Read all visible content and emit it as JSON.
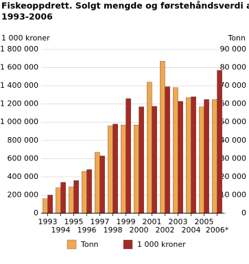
{
  "chart_data": {
    "type": "bar",
    "title": "Fiskeoppdrett. Solgt mengde og førstehåndsverdi av ørret.",
    "subtitle": "1993-2006",
    "y_label": "1 000 kroner",
    "y2_label": "Tonn",
    "categories": [
      "1993",
      "1994",
      "1995",
      "1996",
      "1997",
      "1998",
      "1999",
      "2000",
      "2001",
      "2002",
      "2003",
      "2004",
      "2005",
      "2006*"
    ],
    "series": [
      {
        "name": "Tonn",
        "color": "#f0a74f",
        "axis": "y2",
        "values": [
          8000,
          14000,
          14500,
          23000,
          33500,
          48000,
          48500,
          48500,
          72000,
          83500,
          69000,
          63500,
          58500,
          62500
        ]
      },
      {
        "name": "1 000 kroner",
        "color": "#a52a24",
        "axis": "y",
        "values": [
          200000,
          340000,
          360000,
          480000,
          630000,
          980000,
          1260000,
          1170000,
          1175000,
          1390000,
          1230000,
          1280000,
          1250000,
          1570000
        ]
      }
    ],
    "ylim": [
      0,
      1800000
    ],
    "yticks": [
      0,
      {
        "value": 200000,
        "label": "200 000"
      },
      {
        "value": 400000,
        "label": "400 000"
      },
      {
        "value": 600000,
        "label": "600 000"
      },
      {
        "value": 800000,
        "label": "800 000"
      },
      {
        "value": 1000000,
        "label": "1 000 000"
      },
      {
        "value": 1200000,
        "label": "1 200 000"
      },
      {
        "value": 1400000,
        "label": "1 400 000"
      },
      {
        "value": 1600000,
        "label": "1 600 000"
      },
      {
        "value": 1800000,
        "label": "1 800 000"
      }
    ],
    "y2lim": [
      0,
      90000
    ],
    "y2ticks": [
      0,
      {
        "value": 10000,
        "label": "10 000"
      },
      {
        "value": 20000,
        "label": "20 000"
      },
      {
        "value": 30000,
        "label": "30 000"
      },
      {
        "value": 40000,
        "label": "40 000"
      },
      {
        "value": 50000,
        "label": "50 000"
      },
      {
        "value": 60000,
        "label": "60 000"
      },
      {
        "value": 70000,
        "label": "70 000"
      },
      {
        "value": 80000,
        "label": "80 000"
      },
      {
        "value": 90000,
        "label": "90 000"
      }
    ],
    "grid": true
  }
}
